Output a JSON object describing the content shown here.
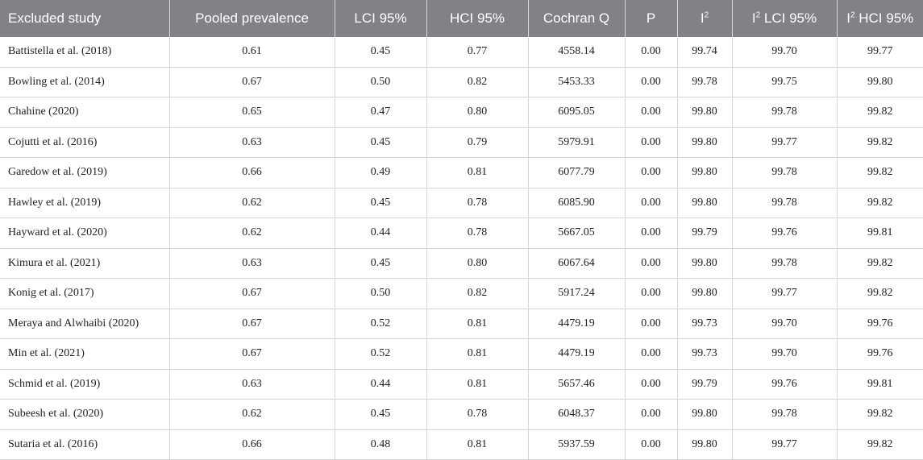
{
  "table": {
    "headers": [
      {
        "text": "Excluded study",
        "sup": ""
      },
      {
        "text": "Pooled prevalence",
        "sup": ""
      },
      {
        "text": "LCI 95%",
        "sup": ""
      },
      {
        "text": "HCI 95%",
        "sup": ""
      },
      {
        "text": "Cochran Q",
        "sup": ""
      },
      {
        "text": "P",
        "sup": ""
      },
      {
        "text": "I",
        "sup": "2"
      },
      {
        "text": "I",
        "sup": "2",
        "rest": " LCI 95%"
      },
      {
        "text": "I",
        "sup": "2",
        "rest": " HCI 95%"
      }
    ],
    "rows": [
      [
        "Battistella et al. (2018)",
        "0.61",
        "0.45",
        "0.77",
        "4558.14",
        "0.00",
        "99.74",
        "99.70",
        "99.77"
      ],
      [
        "Bowling et al. (2014)",
        "0.67",
        "0.50",
        "0.82",
        "5453.33",
        "0.00",
        "99.78",
        "99.75",
        "99.80"
      ],
      [
        "Chahine (2020)",
        "0.65",
        "0.47",
        "0.80",
        "6095.05",
        "0.00",
        "99.80",
        "99.78",
        "99.82"
      ],
      [
        "Cojutti et al. (2016)",
        "0.63",
        "0.45",
        "0.79",
        "5979.91",
        "0.00",
        "99.80",
        "99.77",
        "99.82"
      ],
      [
        "Garedow et al. (2019)",
        "0.66",
        "0.49",
        "0.81",
        "6077.79",
        "0.00",
        "99.80",
        "99.78",
        "99.82"
      ],
      [
        "Hawley et al. (2019)",
        "0.62",
        "0.45",
        "0.78",
        "6085.90",
        "0.00",
        "99.80",
        "99.78",
        "99.82"
      ],
      [
        "Hayward et al. (2020)",
        "0.62",
        "0.44",
        "0.78",
        "5667.05",
        "0.00",
        "99.79",
        "99.76",
        "99.81"
      ],
      [
        "Kimura et al. (2021)",
        "0.63",
        "0.45",
        "0.80",
        "6067.64",
        "0.00",
        "99.80",
        "99.78",
        "99.82"
      ],
      [
        "Konig et al. (2017)",
        "0.67",
        "0.50",
        "0.82",
        "5917.24",
        "0.00",
        "99.80",
        "99.77",
        "99.82"
      ],
      [
        "Meraya and Alwhaibi (2020)",
        "0.67",
        "0.52",
        "0.81",
        "4479.19",
        "0.00",
        "99.73",
        "99.70",
        "99.76"
      ],
      [
        "Min et al. (2021)",
        "0.67",
        "0.52",
        "0.81",
        "4479.19",
        "0.00",
        "99.73",
        "99.70",
        "99.76"
      ],
      [
        "Schmid et al. (2019)",
        "0.63",
        "0.44",
        "0.81",
        "5657.46",
        "0.00",
        "99.79",
        "99.76",
        "99.81"
      ],
      [
        "Subeesh et al. (2020)",
        "0.62",
        "0.45",
        "0.78",
        "6048.37",
        "0.00",
        "99.80",
        "99.78",
        "99.82"
      ],
      [
        "Sutaria et al. (2016)",
        "0.66",
        "0.48",
        "0.81",
        "5937.59",
        "0.00",
        "99.80",
        "99.77",
        "99.82"
      ]
    ]
  }
}
